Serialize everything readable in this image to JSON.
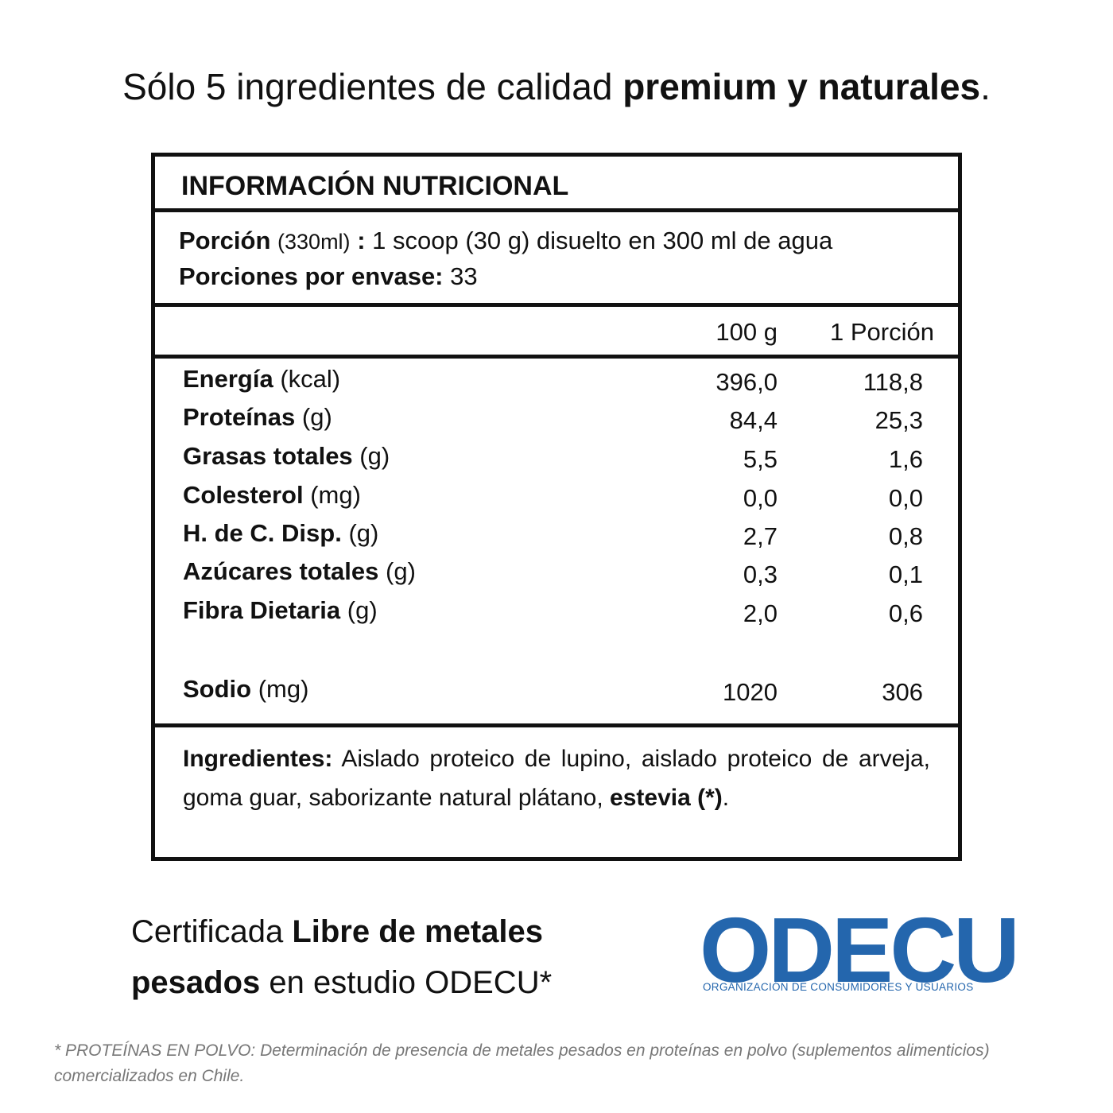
{
  "headline": {
    "text": "Sólo 5 ingredientes de calidad",
    "bold": "premium y naturales",
    "end": "."
  },
  "label": {
    "title": "INFORMACIÓN NUTRICIONAL",
    "serving": {
      "label": "Porción",
      "unit": "(330ml)",
      "sep": ":",
      "text": "1 scoop (30 g) disuelto en 300 ml de agua"
    },
    "servings_per_container": {
      "label": "Porciones por envase:",
      "value": "33"
    },
    "columns": [
      "100 g",
      "1 Porción"
    ],
    "rows": [
      {
        "name": "Energía",
        "unit": "(kcal)",
        "per_100g": "396,0",
        "per_serving": "118,8"
      },
      {
        "name": "Proteínas",
        "unit": "(g)",
        "per_100g": "84,4",
        "per_serving": "25,3"
      },
      {
        "name": "Grasas totales",
        "unit": "(g)",
        "per_100g": "5,5",
        "per_serving": "1,6"
      },
      {
        "name": "Colesterol",
        "unit": "(mg)",
        "per_100g": "0,0",
        "per_serving": "0,0"
      },
      {
        "name": "H. de C. Disp.",
        "unit": "(g)",
        "per_100g": "2,7",
        "per_serving": "0,8"
      },
      {
        "name": "Azúcares totales",
        "unit": "(g)",
        "per_100g": "0,3",
        "per_serving": "0,1"
      },
      {
        "name": "Fibra Dietaria",
        "unit": "(g)",
        "per_100g": "2,0",
        "per_serving": "0,6"
      },
      {
        "name": "Sodio",
        "unit": "(mg)",
        "per_100g": "1020",
        "per_serving": "306"
      }
    ],
    "ingredients": {
      "label": "Ingredientes:",
      "text": "Aislado proteico de lupino, aislado proteico de arveja, goma guar, saborizante natural plátano,",
      "bold": "estevia (*)",
      "end": "."
    }
  },
  "certification": {
    "text": "Certificada",
    "bold": "Libre de metales pesados",
    "end": "en estudio ODECU*"
  },
  "logo": {
    "name": "ODECU",
    "tagline": "ORGANIZACIÓN DE CONSUMIDORES Y USUARIOS"
  },
  "footnote": "* PROTEÍNAS EN POLVO: Determinación de presencia de metales pesados en proteínas en polvo (suplementos alimenticios) comercializados en Chile."
}
